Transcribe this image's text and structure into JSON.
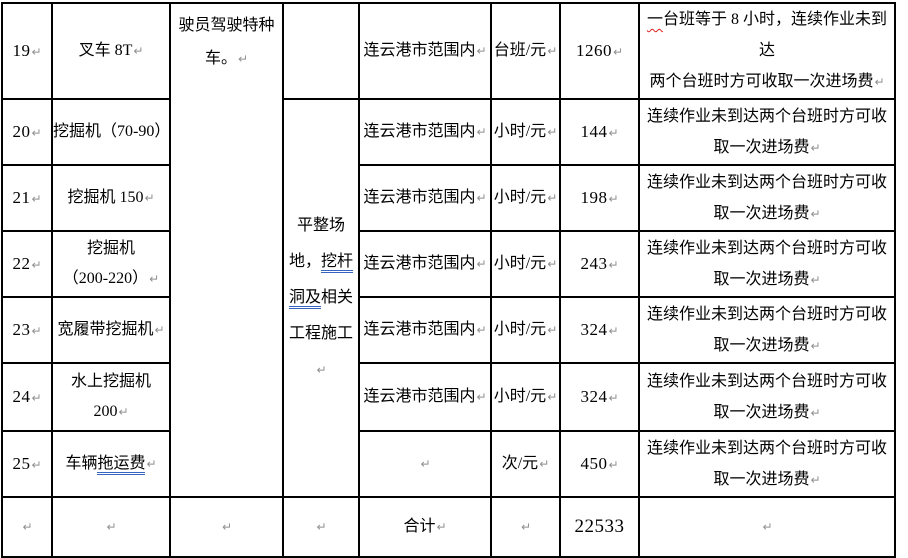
{
  "marks": {
    "pilcrow": "↵"
  },
  "colors": {
    "grid": "#000000",
    "text": "#000000",
    "pilcrow_gray": "#8f8f8f",
    "grammar_underline_blue": "#3565C0",
    "spelling_underline_red": "#e02020"
  },
  "table": {
    "driver_note": {
      "l1": "驶员驾驶特种",
      "l2": "车。"
    },
    "work_scope": {
      "l1": "平整场",
      "l2a": "地，",
      "l2b_underlined": "挖杆",
      "l3a_underlined": "洞及",
      "l3b": "相关",
      "l4": "工程施工"
    },
    "rows": [
      {
        "num": "19",
        "name": "叉车 8T",
        "scope": "连云港市范围内",
        "unit": "台班/元",
        "price": "1260",
        "note_l1_marked": "一",
        "note_l1_rest": "台班等于 8 小时，连续作业未到达",
        "note_l2": "两个台班时方可收取一次进场费"
      },
      {
        "num": "20",
        "name": "挖掘机（70-90）",
        "scope": "连云港市范围内",
        "unit": "小时/元",
        "price": "144",
        "note_l1": "连续作业未到达两个台班时方可收",
        "note_l2": "取一次进场费"
      },
      {
        "num": "21",
        "name": "挖掘机 150",
        "scope": "连云港市范围内",
        "unit": "小时/元",
        "price": "198",
        "note_l1": "连续作业未到达两个台班时方可收",
        "note_l2": "取一次进场费"
      },
      {
        "num": "22",
        "name_l1": "挖掘机",
        "name_l2": "（200-220）",
        "scope": "连云港市范围内",
        "unit": "小时/元",
        "price": "243",
        "note_l1": "连续作业未到达两个台班时方可收",
        "note_l2": "取一次进场费"
      },
      {
        "num": "23",
        "name": "宽履带挖掘机",
        "scope": "连云港市范围内",
        "unit": "小时/元",
        "price": "324",
        "note_l1": "连续作业未到达两个台班时方可收",
        "note_l2": "取一次进场费"
      },
      {
        "num": "24",
        "name": "水上挖掘机 200",
        "scope": "连云港市范围内",
        "unit": "小时/元",
        "price": "324",
        "note_l1": "连续作业未到达两个台班时方可收",
        "note_l2": "取一次进场费"
      },
      {
        "num": "25",
        "name_a": "车辆",
        "name_b_underlined": "拖运费",
        "unit": "次/元",
        "price": "450",
        "note_l1": "连续作业未到达两个台班时方可收",
        "note_l2": "取一次进场费"
      }
    ],
    "total": {
      "label": "合计",
      "value": "22533"
    }
  }
}
